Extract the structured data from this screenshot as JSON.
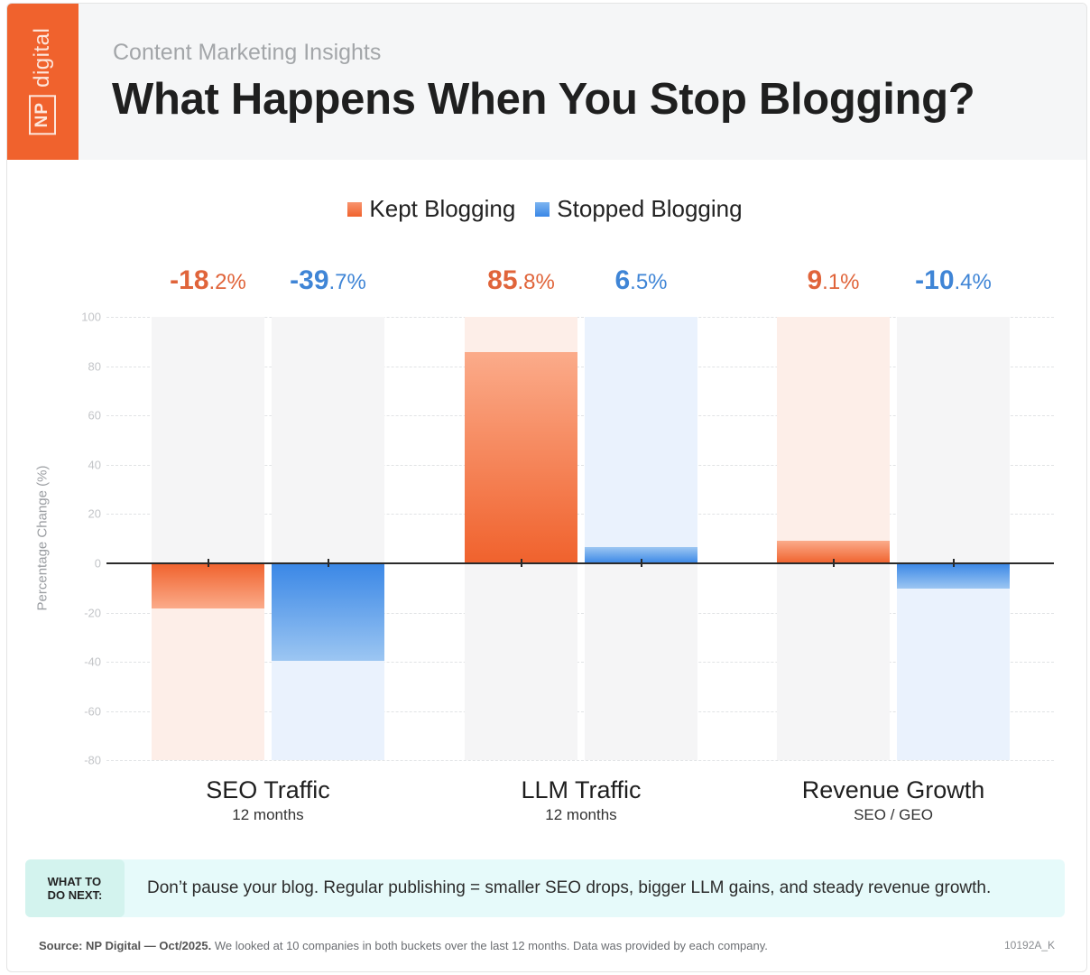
{
  "header": {
    "logo": {
      "np": "NP",
      "digital": "digital"
    },
    "subtitle": "Content Marketing Insights",
    "title": "What Happens When You Stop Blogging?"
  },
  "legend": [
    {
      "label": "Kept Blogging",
      "color": "#f0734a"
    },
    {
      "label": "Stopped Blogging",
      "color": "#4a90e2"
    }
  ],
  "colors": {
    "kept_text": "#e0643a",
    "stopped_text": "#3f85d6",
    "kept_bar_top": "#f0622d",
    "kept_bar_light": "#fbab8a",
    "stopped_bar_top": "#3a87e6",
    "stopped_bar_light": "#9cc6f2",
    "kept_track": "#fdeee8",
    "stopped_track": "#eaf2fd",
    "neutral_track": "#f5f5f6"
  },
  "value_labels": [
    {
      "main": "-18",
      "decimal": ".2%"
    },
    {
      "main": "-39",
      "decimal": ".7%"
    },
    {
      "main": "85",
      "decimal": ".8%"
    },
    {
      "main": "6",
      "decimal": ".5%"
    },
    {
      "main": "9",
      "decimal": ".1%"
    },
    {
      "main": "-10",
      "decimal": ".4%"
    }
  ],
  "categories": [
    {
      "name": "SEO Traffic",
      "sub": "12 months"
    },
    {
      "name": "LLM Traffic",
      "sub": "12 months"
    },
    {
      "name": "Revenue Growth",
      "sub": "SEO / GEO"
    }
  ],
  "y_axis": {
    "title": "Percentage Change (%)",
    "ticks": [
      "100",
      "80",
      "60",
      "40",
      "20",
      "0",
      "-20",
      "-40",
      "-60",
      "-80"
    ]
  },
  "callout": {
    "badge_line1": "WHAT TO",
    "badge_line2": "DO NEXT:",
    "text": "Don’t pause your blog. Regular publishing = smaller SEO drops, bigger LLM gains, and steady revenue growth."
  },
  "footer": {
    "source_bold": "Source: NP Digital — Oct/2025.",
    "source_text": " We looked at 10 companies in both buckets over the last 12 months. Data was provided by each company.",
    "code": "10192A_K"
  },
  "chart_data": {
    "type": "bar",
    "title": "What Happens When You Stop Blogging?",
    "subtitle": "Content Marketing Insights",
    "categories": [
      "SEO Traffic",
      "LLM Traffic",
      "Revenue Growth"
    ],
    "category_subtitles": [
      "12 months",
      "12 months",
      "SEO / GEO"
    ],
    "series": [
      {
        "name": "Kept Blogging",
        "values": [
          -18.2,
          85.8,
          9.1
        ]
      },
      {
        "name": "Stopped Blogging",
        "values": [
          -39.7,
          6.5,
          -10.4
        ]
      }
    ],
    "xlabel": "",
    "ylabel": "Percentage Change (%)",
    "ylim": [
      -80,
      100
    ],
    "yticks": [
      100,
      80,
      60,
      40,
      20,
      0,
      -20,
      -40,
      -60,
      -80
    ],
    "grid": true,
    "legend_position": "top-center",
    "annotations": [
      "-18.2%",
      "-39.7%",
      "85.8%",
      "6.5%",
      "9.1%",
      "-10.4%"
    ]
  }
}
